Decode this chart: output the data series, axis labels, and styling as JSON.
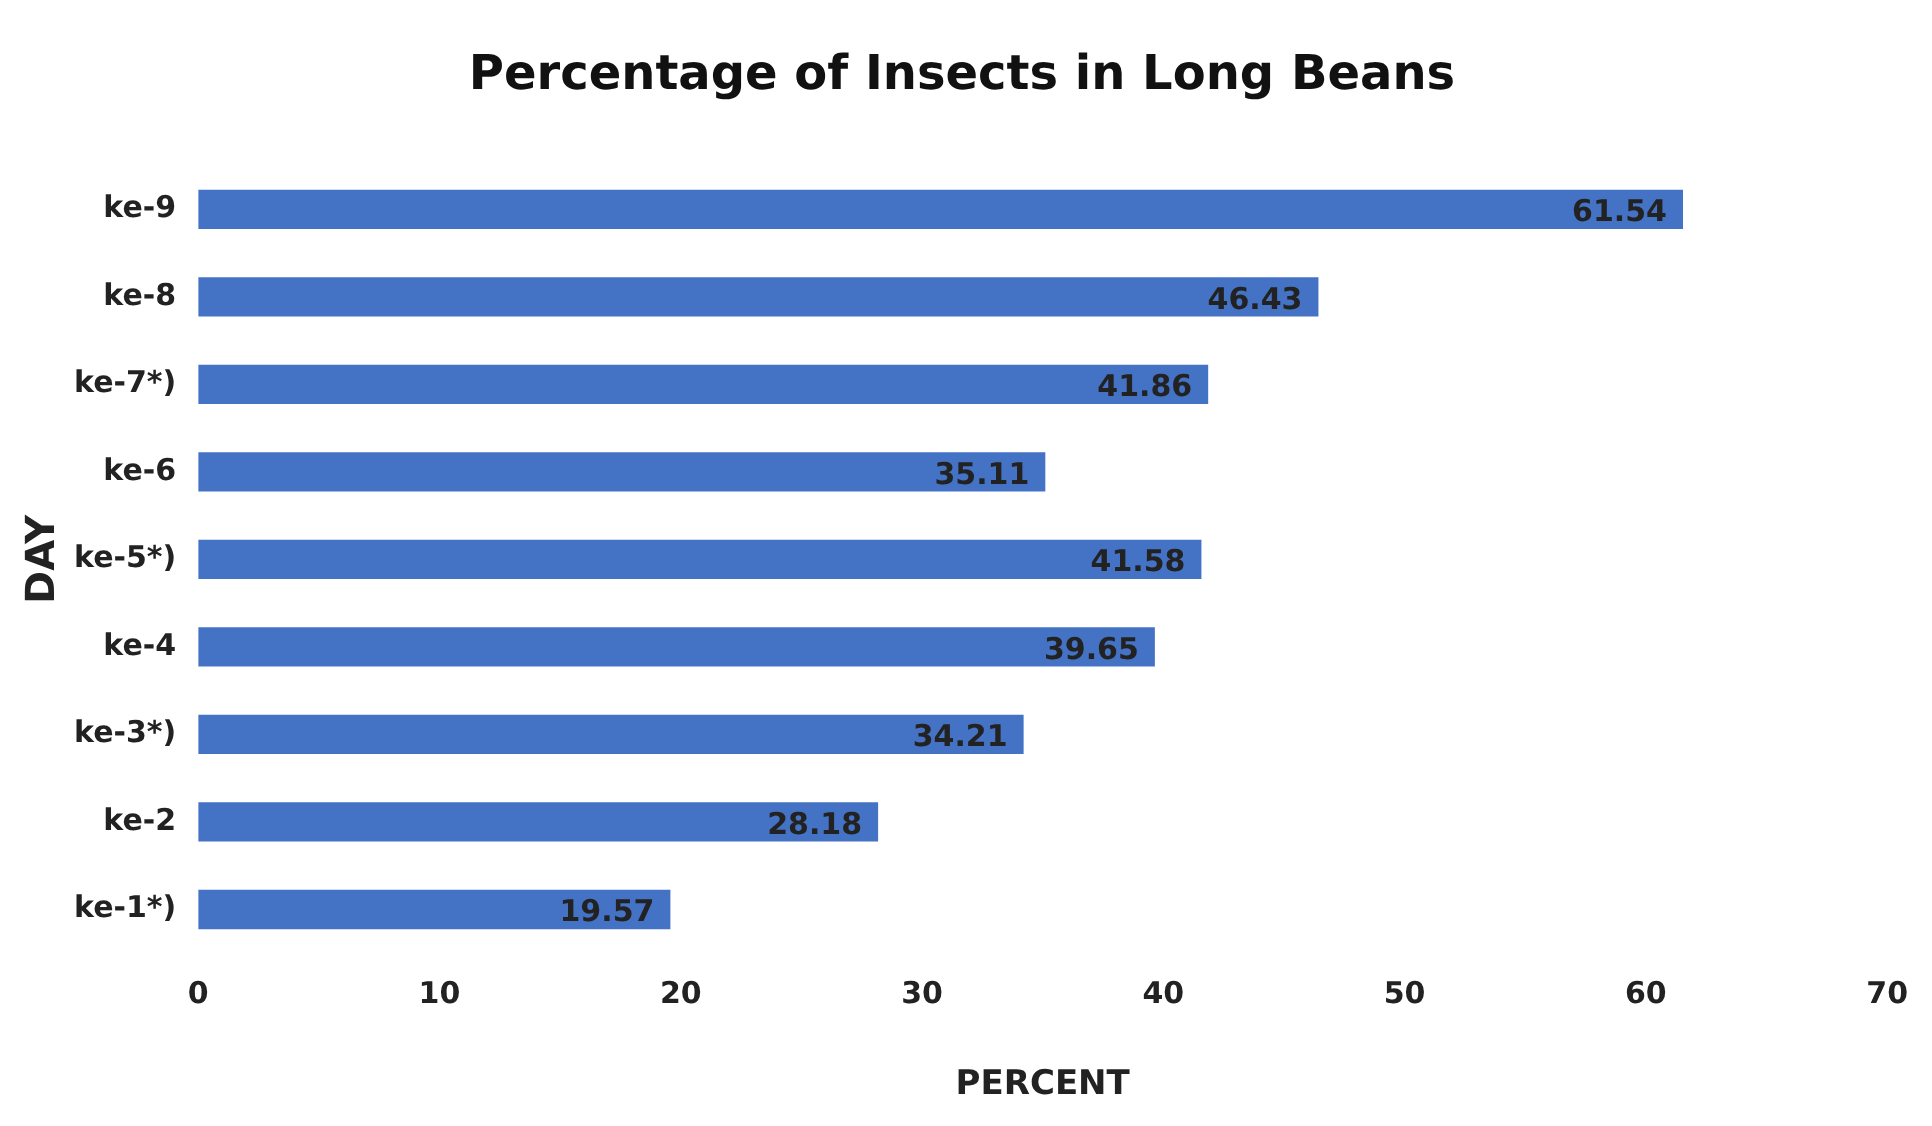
{
  "chart_data": {
    "type": "bar",
    "orientation": "horizontal",
    "title": "Percentage of Insects in Long Beans",
    "xlabel": "PERCENT",
    "ylabel": "DAY",
    "categories": [
      "ke-9",
      "ke-8",
      "ke-7*)",
      "ke-6",
      "ke-5*)",
      "ke-4",
      "ke-3*)",
      "ke-2",
      "ke-1*)"
    ],
    "values": [
      61.54,
      46.43,
      41.86,
      35.11,
      41.58,
      39.65,
      34.21,
      28.18,
      19.57
    ],
    "color": "#4472c4",
    "xlim": [
      0,
      70
    ],
    "xticks": [
      0,
      10,
      20,
      30,
      40,
      50,
      60,
      70
    ],
    "grid": false,
    "legend": false,
    "data_labels": true
  }
}
